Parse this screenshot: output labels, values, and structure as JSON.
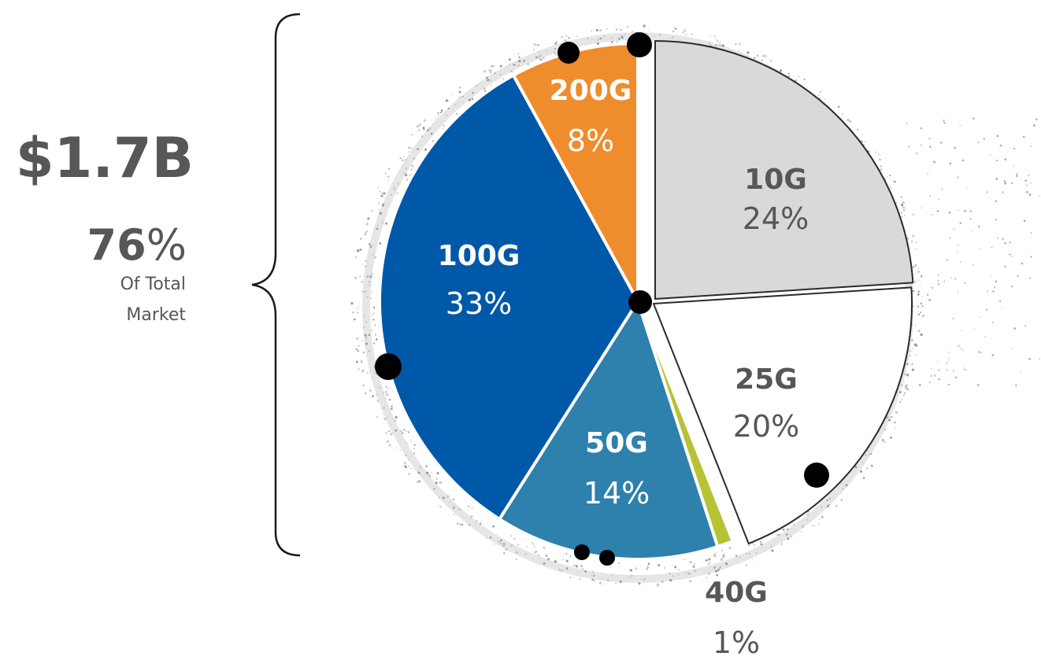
{
  "summary": {
    "total": "$1.7B",
    "share_number": "76",
    "share_symbol": "%",
    "note_line1": "Of Total",
    "note_line2": "Market"
  },
  "chart_data": {
    "type": "pie",
    "start_angle_deg": 0,
    "direction": "clockwise",
    "slices": [
      {
        "label": "10G",
        "value_text": "24%",
        "value": 24,
        "color": "#d9d9d9",
        "label_color": "#575757",
        "exploded": true
      },
      {
        "label": "25G",
        "value_text": "20%",
        "value": 20,
        "color": "#ffffff",
        "label_color": "#575757",
        "exploded": true
      },
      {
        "label": "40G",
        "value_text": "1%",
        "value": 1,
        "color": "#b5c334",
        "label_color": "#575757",
        "exploded": false
      },
      {
        "label": "50G",
        "value_text": "14%",
        "value": 14,
        "color": "#2e80ad",
        "label_color": "#ffffff",
        "exploded": false
      },
      {
        "label": "100G",
        "value_text": "33%",
        "value": 33,
        "color": "#0058a8",
        "label_color": "#ffffff",
        "exploded": false
      },
      {
        "label": "200G",
        "value_text": "8%",
        "value": 8,
        "color": "#ef8c2c",
        "label_color": "#ffffff",
        "exploded": false
      }
    ],
    "outline_color": "#2b2b2b",
    "marker_color": "#000000"
  }
}
